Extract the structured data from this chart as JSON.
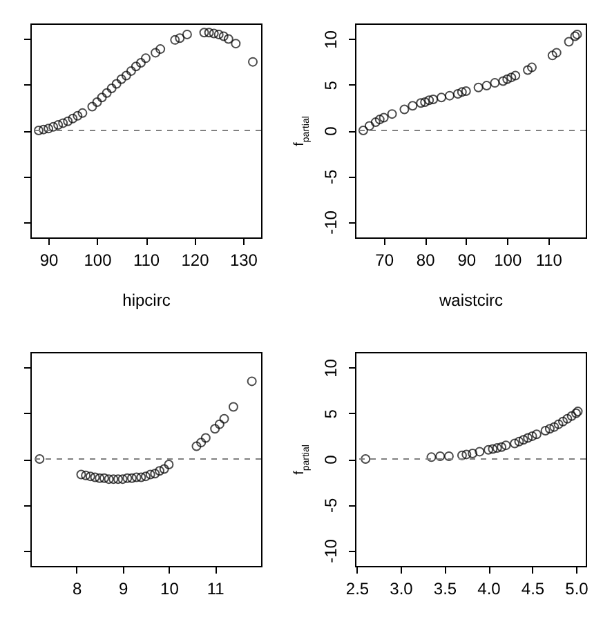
{
  "chart_data": [
    {
      "type": "scatter",
      "xlabel": "hipcirc",
      "tick_labels": "x",
      "marker": "circle",
      "grid": false,
      "xlim": [
        86.3,
        133.7
      ],
      "ylim": [
        -11.7,
        11.7
      ],
      "xticks": [
        90,
        100,
        110,
        120,
        130
      ],
      "yticks": [
        {
          "value": -10,
          "label": null
        },
        {
          "value": -5,
          "label": null
        },
        {
          "value": 0,
          "label": null
        },
        {
          "value": 5,
          "label": null
        },
        {
          "value": 10,
          "label": null
        }
      ],
      "ref_lines": [
        {
          "axis": "y",
          "value": 0,
          "color": "#808080",
          "line_style": "dashed"
        }
      ],
      "series": [
        {
          "color": "#000000",
          "x": [
            88,
            89,
            90,
            91,
            92,
            93,
            94,
            95,
            96,
            97,
            99,
            100,
            101,
            102,
            103,
            104,
            105,
            106,
            107,
            108,
            109,
            110,
            112,
            113,
            116,
            117,
            118.5,
            122,
            123,
            124,
            125,
            126,
            127,
            128.5,
            132
          ],
          "values": [
            0,
            0.1,
            0.2,
            0.4,
            0.6,
            0.8,
            1.0,
            1.3,
            1.6,
            1.9,
            2.6,
            3.1,
            3.6,
            4.1,
            4.6,
            5.1,
            5.6,
            6.0,
            6.5,
            7.0,
            7.4,
            7.9,
            8.5,
            8.9,
            9.9,
            10.1,
            10.5,
            10.7,
            10.7,
            10.6,
            10.5,
            10.3,
            10.0,
            9.5,
            7.5
          ]
        }
      ]
    },
    {
      "type": "scatter",
      "xlabel": "waistcirc",
      "ylabel": "f$_{partial}$",
      "marker": "circle",
      "grid": false,
      "xlim": [
        63,
        119.1
      ],
      "ylim": [
        -11.7,
        11.7
      ],
      "xticks": [
        70,
        80,
        90,
        100,
        110
      ],
      "yticks": [
        -10,
        -5,
        0,
        5,
        10
      ],
      "ref_lines": [
        {
          "axis": "y",
          "value": 0,
          "color": "#808080",
          "line_style": "dashed"
        }
      ],
      "series": [
        {
          "color": "#000000",
          "x": [
            65,
            66.5,
            68,
            69,
            70,
            72,
            75,
            77,
            79,
            80,
            81,
            82,
            84,
            86,
            88,
            89,
            90,
            93,
            95,
            97,
            99,
            100,
            101,
            102,
            105,
            106,
            111,
            112,
            115,
            116.5,
            117
          ],
          "values": [
            0,
            0.5,
            0.9,
            1.2,
            1.4,
            1.8,
            2.3,
            2.7,
            3.0,
            3.1,
            3.3,
            3.4,
            3.6,
            3.8,
            4.0,
            4.2,
            4.3,
            4.7,
            4.9,
            5.2,
            5.4,
            5.6,
            5.8,
            6.0,
            6.6,
            6.9,
            8.2,
            8.5,
            9.7,
            10.3,
            10.5
          ]
        }
      ]
    },
    {
      "type": "scatter",
      "tick_labels": "x",
      "marker": "circle",
      "grid": false,
      "xlim": [
        7.0,
        12.0
      ],
      "ylim": [
        -11.7,
        11.7
      ],
      "xticks": [
        8,
        9,
        10,
        11
      ],
      "yticks": [
        {
          "value": -10,
          "label": null
        },
        {
          "value": -5,
          "label": null
        },
        {
          "value": 0,
          "label": null
        },
        {
          "value": 5,
          "label": null
        },
        {
          "value": 10,
          "label": null
        }
      ],
      "ref_lines": [
        {
          "axis": "y",
          "value": 0,
          "color": "#808080",
          "line_style": "dashed"
        }
      ],
      "series": [
        {
          "color": "#000000",
          "x": [
            7.2,
            8.1,
            8.2,
            8.3,
            8.4,
            8.5,
            8.6,
            8.7,
            8.8,
            8.9,
            9.0,
            9.1,
            9.2,
            9.3,
            9.4,
            9.5,
            9.6,
            9.7,
            9.8,
            9.9,
            10.0,
            10.6,
            10.7,
            10.8,
            11.0,
            11.1,
            11.2,
            11.4,
            11.8
          ],
          "values": [
            0,
            -1.7,
            -1.8,
            -1.9,
            -2.0,
            -2.1,
            -2.1,
            -2.2,
            -2.2,
            -2.2,
            -2.2,
            -2.1,
            -2.1,
            -2.0,
            -2.0,
            -1.9,
            -1.7,
            -1.6,
            -1.3,
            -1.1,
            -0.6,
            1.4,
            1.8,
            2.3,
            3.3,
            3.8,
            4.4,
            5.7,
            8.5
          ]
        }
      ]
    },
    {
      "type": "scatter",
      "ylabel": "f$_{partial}$",
      "marker": "circle",
      "grid": false,
      "xlim": [
        2.48,
        5.11
      ],
      "ylim": [
        -11.7,
        11.7
      ],
      "xticks": [
        {
          "value": 2.5,
          "label": "2.5"
        },
        {
          "value": 3,
          "label": "3.0"
        },
        {
          "value": 3.5,
          "label": "3.5"
        },
        {
          "value": 4,
          "label": "4.0"
        },
        {
          "value": 4.5,
          "label": "4.5"
        },
        {
          "value": 5,
          "label": "5.0"
        }
      ],
      "yticks": [
        -10,
        -5,
        0,
        5,
        10
      ],
      "ref_lines": [
        {
          "axis": "y",
          "value": 0,
          "color": "#808080",
          "line_style": "dashed"
        }
      ],
      "series": [
        {
          "color": "#000000",
          "x": [
            2.6,
            3.35,
            3.45,
            3.55,
            3.7,
            3.75,
            3.82,
            3.9,
            4.0,
            4.05,
            4.1,
            4.15,
            4.2,
            4.3,
            4.35,
            4.4,
            4.45,
            4.5,
            4.55,
            4.65,
            4.7,
            4.75,
            4.8,
            4.85,
            4.9,
            4.95,
            5.0,
            5.02
          ],
          "values": [
            0,
            0.2,
            0.3,
            0.3,
            0.4,
            0.5,
            0.6,
            0.8,
            1.0,
            1.1,
            1.2,
            1.3,
            1.5,
            1.7,
            1.9,
            2.1,
            2.3,
            2.5,
            2.7,
            3.1,
            3.3,
            3.5,
            3.8,
            4.1,
            4.4,
            4.7,
            5.0,
            5.2
          ]
        }
      ]
    }
  ]
}
